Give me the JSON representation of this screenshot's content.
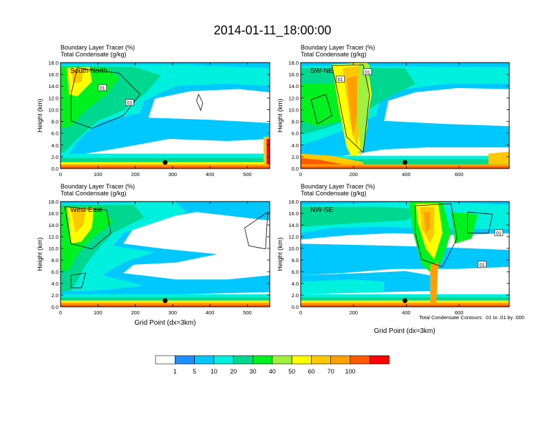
{
  "figure": {
    "title": "2014-01-11_18:00:00",
    "footnote": "Total Condensate Contours: .01 to .01 by .000",
    "xlabel": "Grid Point (dx=3km)"
  },
  "colorbar": {
    "labels": [
      "1",
      "5",
      "10",
      "20",
      "30",
      "40",
      "50",
      "60",
      "70",
      "100"
    ],
    "colors": [
      "#ffffff",
      "#1e90ff",
      "#00c8ff",
      "#00f0e0",
      "#00d890",
      "#00f020",
      "#a0f040",
      "#ffff00",
      "#ffc800",
      "#ffa000",
      "#ff5a00",
      "#ff0000"
    ]
  },
  "chart_data": [
    {
      "type": "heatmap",
      "panel_label": "South-North",
      "title_line1": "Boundary Layer Tracer   (%)",
      "title_line2": "Total Condensate   (g/kg)",
      "xlabel": "",
      "ylabel": "Height (km)",
      "xlim": [
        0,
        560
      ],
      "ylim": [
        0,
        18
      ],
      "xticks": [
        0,
        100,
        200,
        300,
        400,
        500
      ],
      "yticks": [
        "0.0",
        "2.0",
        "4.0",
        "6.0",
        "8.0",
        "10.0",
        "12.0",
        "14.0",
        "16.0",
        "18.0"
      ],
      "marker_x": 280,
      "contour_labels": [
        "01",
        "01"
      ]
    },
    {
      "type": "heatmap",
      "panel_label": "SW-NE",
      "title_line1": "Boundary Layer Tracer   (%)",
      "title_line2": "Total Condensate   (g/kg)",
      "xlabel": "",
      "ylabel": "Height (km)",
      "xlim": [
        0,
        790
      ],
      "ylim": [
        0,
        18
      ],
      "xticks": [
        0,
        200,
        400,
        600
      ],
      "yticks": [
        "0.0",
        "2.0",
        "4.0",
        "6.0",
        "8.0",
        "10.0",
        "12.0",
        "14.0",
        "16.0",
        "18.0"
      ],
      "marker_x": 395,
      "contour_labels": [
        "01",
        "01"
      ]
    },
    {
      "type": "heatmap",
      "panel_label": "West-East",
      "title_line1": "Boundary Layer Tracer   (%)",
      "title_line2": "Total Condensate   (g/kg)",
      "xlabel": "Grid Point (dx=3km)",
      "ylabel": "Height (km)",
      "xlim": [
        0,
        560
      ],
      "ylim": [
        0,
        18
      ],
      "xticks": [
        0,
        100,
        200,
        300,
        400,
        500
      ],
      "yticks": [
        "0.0",
        "2.0",
        "4.0",
        "6.0",
        "8.0",
        "10.0",
        "12.0",
        "14.0",
        "16.0",
        "18.0"
      ],
      "marker_x": 280,
      "contour_labels": []
    },
    {
      "type": "heatmap",
      "panel_label": "NW-SE",
      "title_line1": "Boundary Layer Tracer   (%)",
      "title_line2": "Total Condensate   (g/kg)",
      "xlabel": "",
      "ylabel": "Height (km)",
      "xlim": [
        0,
        790
      ],
      "ylim": [
        0,
        18
      ],
      "xticks": [
        0,
        200,
        400,
        600
      ],
      "yticks": [
        "0.0",
        "2.0",
        "4.0",
        "6.0",
        "8.0",
        "10.0",
        "12.0",
        "14.0",
        "16.0",
        "18.0"
      ],
      "marker_x": 395,
      "contour_labels": [
        "01",
        "01"
      ]
    }
  ]
}
